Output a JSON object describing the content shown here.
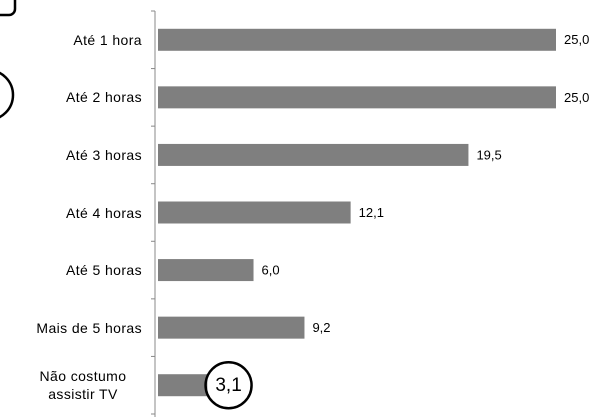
{
  "chart_data": {
    "type": "hbar",
    "categories": [
      "Até 1 hora",
      "Até 2 horas",
      "Até 3 horas",
      "Até 4 horas",
      "Até 5 horas",
      "Mais de 5 horas",
      "Não costumo assistir TV"
    ],
    "values": [
      25.0,
      25.0,
      19.5,
      12.1,
      6.0,
      9.2,
      3.1
    ],
    "value_labels": [
      "25,0",
      "25,0",
      "19,5",
      "12,1",
      "6,0",
      "9,2",
      "3,1"
    ],
    "color": "#7f7f7f",
    "xlim": [
      0,
      27
    ],
    "highlight": "3,1"
  }
}
